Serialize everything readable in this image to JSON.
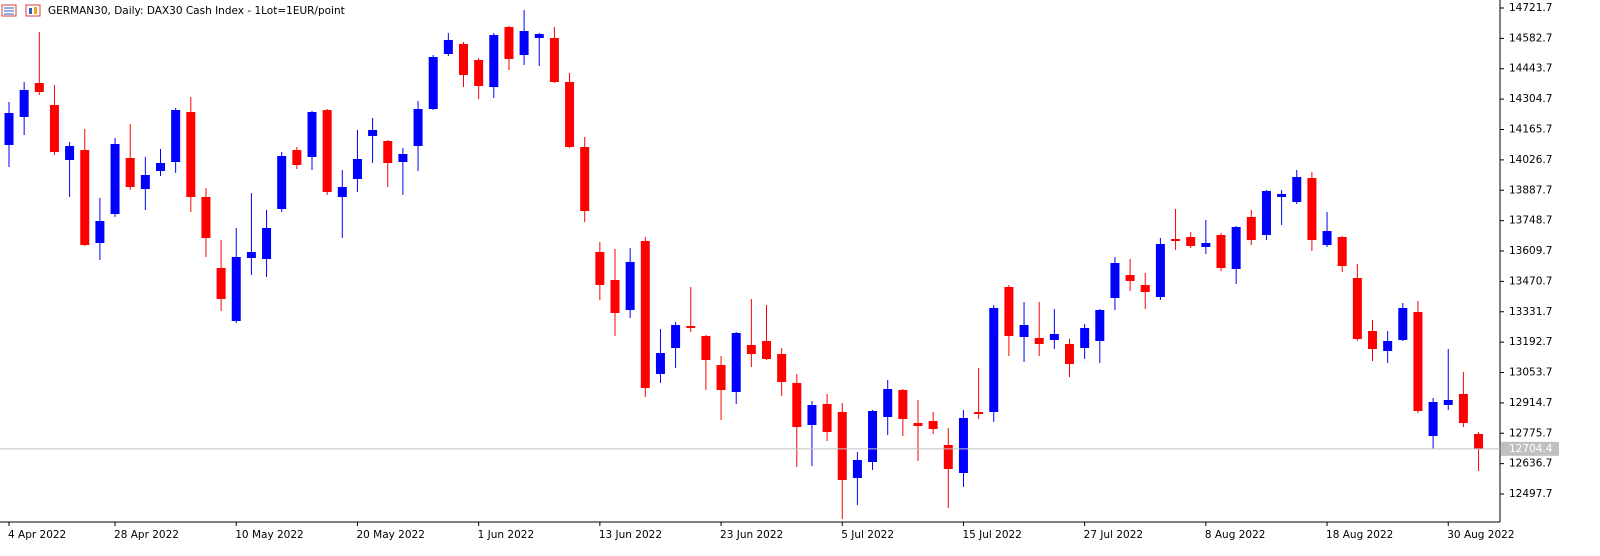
{
  "chart_data": {
    "type": "candlestick",
    "title": "GERMAN30, Daily:  DAX30 Cash Index  - 1Lot=1EUR/point",
    "categories": [
      "4 Apr 2022",
      null,
      null,
      null,
      null,
      null,
      null,
      "28 Apr 2022",
      null,
      null,
      null,
      null,
      null,
      null,
      null,
      "10 May 2022",
      null,
      null,
      null,
      null,
      null,
      null,
      null,
      "20 May 2022",
      null,
      null,
      null,
      null,
      null,
      null,
      null,
      "1 Jun 2022",
      null,
      null,
      null,
      null,
      null,
      null,
      null,
      "13 Jun 2022",
      null,
      null,
      null,
      null,
      null,
      null,
      null,
      "23 Jun 2022",
      null,
      null,
      null,
      null,
      null,
      null,
      null,
      "5 Jul 2022",
      null,
      null,
      null,
      null,
      null,
      null,
      null,
      "15 Jul 2022",
      null,
      null,
      null,
      null,
      null,
      null,
      null,
      "27 Jul 2022",
      null,
      null,
      null,
      null,
      null,
      null,
      null,
      "8 Aug 2022",
      null,
      null,
      null,
      null,
      null,
      null,
      null,
      "18 Aug 2022",
      null,
      null,
      null,
      null,
      null,
      null,
      null,
      "30 Aug 2022",
      null,
      null
    ],
    "open": [
      14094.8,
      14222.9,
      14378.5,
      14277.8,
      14026.1,
      14071.9,
      13646.3,
      13779.0,
      14035.3,
      13893.4,
      13975.8,
      14017.0,
      14245.8,
      13856.8,
      13531.9,
      13289.4,
      13577.7,
      13573.1,
      13801.9,
      14071.9,
      14039.9,
      14254.9,
      13856.8,
      13939.2,
      14136.0,
      14113.1,
      14017.0,
      14090.2,
      14259.5,
      14511.2,
      14557.0,
      14483.7,
      14360.2,
      14634.7,
      14506.6,
      14584.4,
      14584.4,
      14383.1,
      14085.6,
      13605.1,
      13477.0,
      13339.7,
      13655.5,
      13046.9,
      13165.9,
      13266.5,
      13220.8,
      13088.1,
      12964.5,
      13179.6,
      13197.9,
      13138.4,
      13005.7,
      12813.5,
      12909.6,
      12873.0,
      12571.0,
      12644.2,
      12850.1,
      12973.7,
      12822.7,
      12831.8,
      12722.0,
      12593.9,
      12873.0,
      12873.0,
      13445.0,
      13216.2,
      13211.6,
      13202.5,
      13184.2,
      13165.9,
      13197.9,
      13394.7,
      13499.9,
      13454.1,
      13399.2,
      13664.6,
      13673.8,
      13628.0,
      13682.9,
      13527.4,
      13765.3,
      13682.9,
      13856.8,
      13833.9,
      13943.8,
      13637.2,
      13673.8,
      13486.2,
      13243.6,
      13152.1,
      13202.5,
      13330.6,
      12763.2,
      12905.0,
      12955.4,
      12772.3
    ],
    "high": [
      14291.5,
      14383.1,
      14611.9,
      14369.3,
      14108.5,
      14168.0,
      13852.3,
      14126.8,
      14190.9,
      14039.9,
      14076.5,
      14264.1,
      14314.4,
      13898.0,
      13660.1,
      13715.0,
      13875.1,
      13797.3,
      14062.7,
      14085.6,
      14250.4,
      14259.5,
      13980.4,
      14163.4,
      14218.3,
      14117.7,
      14081.1,
      14296.1,
      14506.6,
      14607.3,
      14566.1,
      14492.9,
      14607.3,
      14639.3,
      14712.5,
      14607.3,
      14634.7,
      14424.3,
      14131.4,
      13650.9,
      13618.9,
      13623.5,
      13673.8,
      13252.8,
      13284.8,
      13445.0,
      13225.3,
      13129.2,
      13239.1,
      13390.1,
      13362.6,
      13165.9,
      13046.9,
      12923.3,
      12955.4,
      12914.2,
      12689.9,
      12882.1,
      13019.4,
      12978.2,
      12927.9,
      12873.0,
      12799.8,
      12882.1,
      13074.3,
      13362.6,
      13454.1,
      13376.4,
      13376.4,
      13344.3,
      13207.0,
      13275.7,
      13344.3,
      13582.3,
      13573.1,
      13509.1,
      13669.2,
      13801.9,
      13696.7,
      13751.6,
      13692.1,
      13724.1,
      13797.3,
      13888.9,
      13888.9,
      13980.4,
      13971.2,
      13788.2,
      13678.4,
      13550.2,
      13294.0,
      13243.6,
      13371.8,
      13380.9,
      12937.1,
      13161.3,
      13056.0,
      12781.5
    ],
    "low": [
      13994.1,
      14140.5,
      14323.6,
      14049.0,
      13856.8,
      13632.6,
      13568.5,
      13765.3,
      13888.9,
      13797.3,
      13952.9,
      13966.7,
      13788.2,
      13582.3,
      13335.2,
      13280.3,
      13499.9,
      13490.7,
      13788.2,
      13985.0,
      13980.4,
      13866.0,
      13669.2,
      13879.7,
      14012.4,
      13902.6,
      13866.0,
      13975.8,
      14254.9,
      14502.1,
      14360.2,
      14305.3,
      14309.9,
      14438.0,
      14460.9,
      14456.3,
      14378.5,
      14081.1,
      13742.4,
      13385.5,
      13220.8,
      13303.1,
      12941.6,
      13005.7,
      13074.3,
      13239.1,
      12973.7,
      12836.4,
      12909.6,
      13078.9,
      13110.9,
      12946.2,
      12621.3,
      12625.9,
      12740.3,
      12383.4,
      12447.4,
      12607.6,
      12767.7,
      12763.2,
      12648.8,
      12772.3,
      12433.7,
      12529.8,
      12841.0,
      12827.2,
      13129.2,
      13101.8,
      13129.2,
      13161.3,
      13033.1,
      13115.5,
      13097.2,
      13339.7,
      13426.7,
      13344.3,
      13385.5,
      13614.3,
      13623.5,
      13596.0,
      13518.2,
      13458.7,
      13637.2,
      13660.1,
      13728.7,
      13824.8,
      13609.7,
      13628.0,
      13513.6,
      13197.9,
      13106.4,
      13097.2,
      13197.9,
      12868.4,
      12703.7,
      12882.1,
      12804.3,
      12603.0
    ],
    "close": [
      14241.2,
      14346.5,
      14337.3,
      14062.7,
      14090.2,
      13637.2,
      13747.0,
      14099.4,
      13902.6,
      13957.5,
      14012.4,
      14254.9,
      13856.8,
      13669.2,
      13390.1,
      13582.3,
      13605.1,
      13715.0,
      14044.4,
      14003.3,
      14245.8,
      13879.7,
      13902.6,
      14030.7,
      14163.4,
      14012.4,
      14053.6,
      14259.5,
      14497.5,
      14575.3,
      14415.1,
      14364.8,
      14598.1,
      14488.3,
      14616.4,
      14602.7,
      14383.1,
      14085.6,
      13792.8,
      13454.1,
      13326.0,
      13559.4,
      12982.8,
      13143.0,
      13271.1,
      13257.4,
      13110.9,
      12973.7,
      13234.5,
      13138.4,
      13115.5,
      13010.3,
      12804.3,
      12905.0,
      12781.5,
      12561.8,
      12653.3,
      12877.6,
      12978.2,
      12841.0,
      12808.9,
      12795.2,
      12612.2,
      12845.5,
      12863.8,
      13348.9,
      13220.8,
      13271.1,
      13184.2,
      13229.9,
      13092.6,
      13257.4,
      13339.7,
      13554.8,
      13472.4,
      13422.1,
      13641.8,
      13655.5,
      13632.6,
      13646.3,
      13531.9,
      13719.5,
      13660.1,
      13884.3,
      13870.6,
      13948.3,
      13660.1,
      13701.2,
      13541.1,
      13207.0,
      13161.3,
      13197.9,
      13348.9,
      12877.6,
      12918.7,
      12927.9,
      12822.7,
      12704.4
    ],
    "up_color": "#0000ff",
    "down_color": "#ff0000",
    "ylim": [
      12369.6,
      14758.3
    ],
    "yticks": [
      14721.7,
      14582.7,
      14443.7,
      14304.7,
      14165.7,
      14026.7,
      13887.7,
      13748.7,
      13609.7,
      13470.7,
      13331.7,
      13192.7,
      13053.7,
      12914.7,
      12775.7,
      12636.7,
      12497.7
    ],
    "current_price": 12704.4,
    "current_price_color": "#c0c0c0"
  }
}
